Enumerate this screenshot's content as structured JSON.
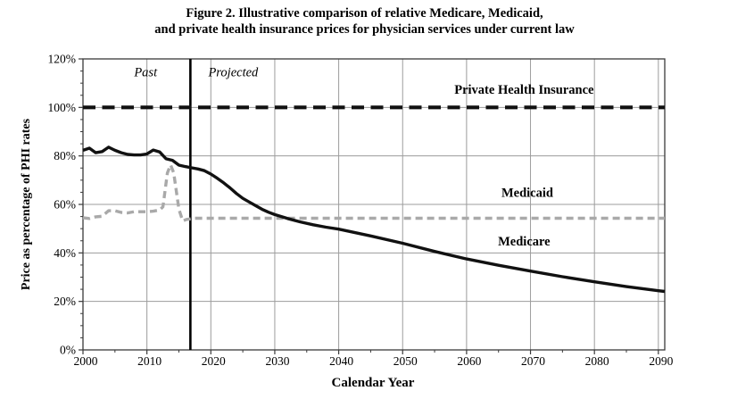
{
  "figure": {
    "title_line1": "Figure 2. Illustrative comparison of relative Medicare, Medicaid,",
    "title_line2": "and private health insurance prices for physician services under current law"
  },
  "chart_data": {
    "type": "line",
    "title": "Figure 2. Illustrative comparison of relative Medicare, Medicaid, and private health insurance prices for physician services under current law",
    "xlabel": "Calendar Year",
    "ylabel": "Price as percentage of PHI rates",
    "xlim": [
      2000,
      2091
    ],
    "ylim": [
      0,
      120
    ],
    "x_ticks": [
      2000,
      2010,
      2020,
      2030,
      2040,
      2050,
      2060,
      2070,
      2080,
      2090
    ],
    "x_tick_labels": [
      "2000",
      "2010",
      "2020",
      "2030",
      "2040",
      "2050",
      "2060",
      "2070",
      "2080",
      "2090"
    ],
    "x_minor_step": 5,
    "y_ticks": [
      0,
      20,
      40,
      60,
      80,
      100,
      120
    ],
    "y_tick_labels": [
      "0%",
      "20%",
      "40%",
      "60%",
      "80%",
      "100%",
      "120%"
    ],
    "y_minor_step": 5,
    "grid": true,
    "grid_color": "#9c9c9c",
    "border_color": "#3a3a3a",
    "divider": {
      "x": 2016.8,
      "color": "#000000",
      "width": 2.6
    },
    "annotations": [
      {
        "text": "Past",
        "x": 2009.8,
        "y": 114.6,
        "style": "italic"
      },
      {
        "text": "Projected",
        "x": 2023.5,
        "y": 114.6,
        "style": "italic"
      },
      {
        "text": "Private Health Insurance",
        "x": 2069.0,
        "y": 107.5,
        "style": "bold"
      },
      {
        "text": "Medicaid",
        "x": 2069.5,
        "y": 65.0,
        "style": "bold"
      },
      {
        "text": "Medicare",
        "x": 2069.0,
        "y": 45.0,
        "style": "bold"
      }
    ],
    "series": [
      {
        "name": "Private Health Insurance",
        "color": "#111111",
        "style": "dashed-long",
        "width": 4.2,
        "points": [
          [
            2000,
            100
          ],
          [
            2091,
            100
          ]
        ]
      },
      {
        "name": "Medicaid",
        "color": "#a9a9a9",
        "style": "dashed",
        "width": 3.4,
        "points": [
          [
            2000,
            54.5
          ],
          [
            2001,
            54.2
          ],
          [
            2002,
            54.9
          ],
          [
            2003,
            55.1
          ],
          [
            2004,
            57.4
          ],
          [
            2005,
            57.4
          ],
          [
            2006,
            56.7
          ],
          [
            2007,
            56.5
          ],
          [
            2008,
            57.0
          ],
          [
            2009,
            57.0
          ],
          [
            2010,
            57.0
          ],
          [
            2011,
            57.2
          ],
          [
            2012,
            57.7
          ],
          [
            2012.5,
            59.0
          ],
          [
            2013.2,
            73.0
          ],
          [
            2013.7,
            76.3
          ],
          [
            2014.2,
            73.0
          ],
          [
            2015,
            58.0
          ],
          [
            2015.6,
            53.2
          ],
          [
            2016.2,
            53.8
          ],
          [
            2017.5,
            54.3
          ],
          [
            2091,
            54.3
          ]
        ]
      },
      {
        "name": "Medicare",
        "color": "#111111",
        "style": "solid",
        "width": 3.4,
        "points": [
          [
            2000,
            82.3
          ],
          [
            2001,
            83.2
          ],
          [
            2002,
            81.3
          ],
          [
            2003,
            81.8
          ],
          [
            2004,
            83.6
          ],
          [
            2005,
            82.3
          ],
          [
            2006,
            81.3
          ],
          [
            2007,
            80.6
          ],
          [
            2008,
            80.4
          ],
          [
            2009,
            80.4
          ],
          [
            2010,
            80.8
          ],
          [
            2011,
            82.4
          ],
          [
            2012,
            81.6
          ],
          [
            2013,
            78.8
          ],
          [
            2014,
            78.2
          ],
          [
            2015,
            76.2
          ],
          [
            2016,
            75.6
          ],
          [
            2017,
            75.1
          ],
          [
            2018,
            74.6
          ],
          [
            2019,
            73.9
          ],
          [
            2020,
            72.5
          ],
          [
            2021,
            70.8
          ],
          [
            2022,
            68.9
          ],
          [
            2023,
            66.8
          ],
          [
            2024,
            64.5
          ],
          [
            2025,
            62.5
          ],
          [
            2026,
            61.0
          ],
          [
            2027,
            59.5
          ],
          [
            2028,
            58.0
          ],
          [
            2029,
            56.8
          ],
          [
            2030,
            55.8
          ],
          [
            2032,
            54.2
          ],
          [
            2034,
            52.8
          ],
          [
            2036,
            51.6
          ],
          [
            2038,
            50.6
          ],
          [
            2040,
            49.8
          ],
          [
            2045,
            47.0
          ],
          [
            2050,
            44.0
          ],
          [
            2055,
            40.6
          ],
          [
            2060,
            37.5
          ],
          [
            2065,
            34.9
          ],
          [
            2070,
            32.5
          ],
          [
            2075,
            30.2
          ],
          [
            2080,
            28.1
          ],
          [
            2085,
            26.1
          ],
          [
            2090,
            24.4
          ],
          [
            2091,
            24.1
          ]
        ]
      }
    ]
  }
}
